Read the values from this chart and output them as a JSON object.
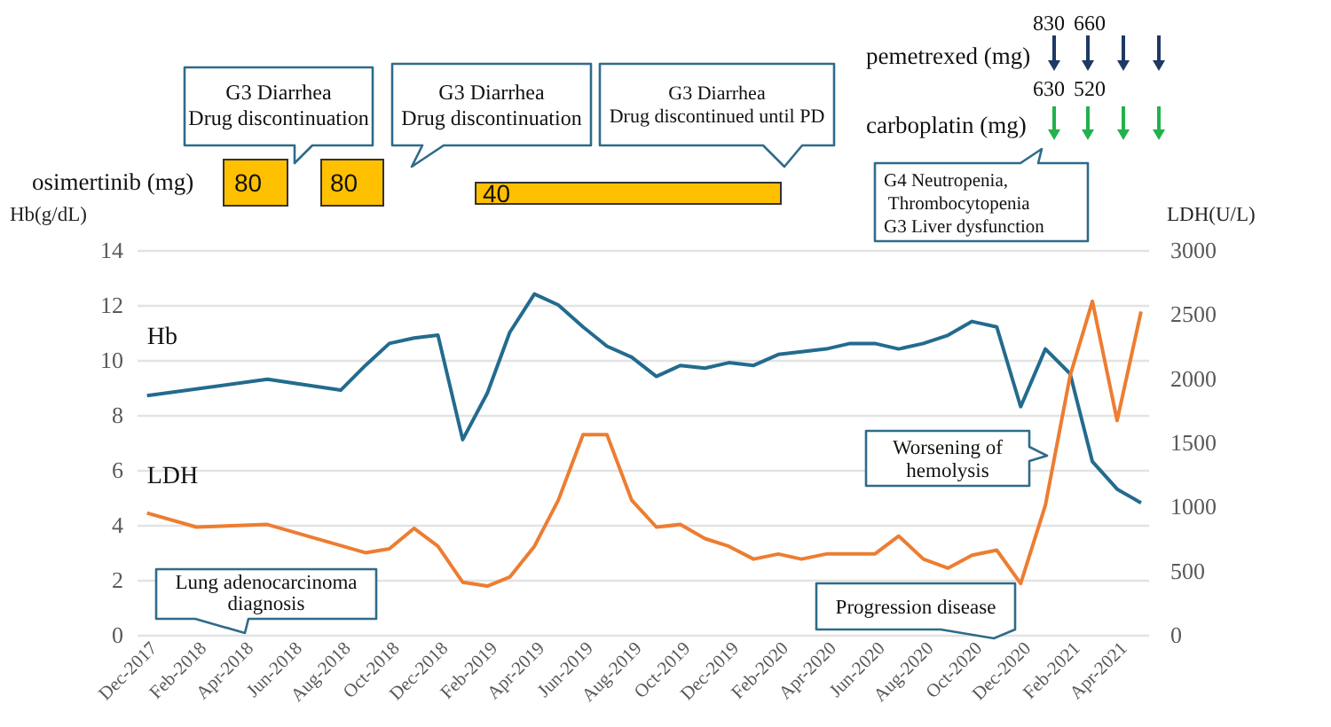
{
  "chart_data": {
    "type": "line",
    "xlim": [
      "2017-11-18",
      "2021-05-10"
    ],
    "xticks": [
      {
        "value": "2017-12",
        "label": "Dec-2017"
      },
      {
        "value": "2018-02",
        "label": "Feb-2018"
      },
      {
        "value": "2018-04",
        "label": "Apr-2018"
      },
      {
        "value": "2018-06",
        "label": "Jun-2018"
      },
      {
        "value": "2018-08",
        "label": "Aug-2018"
      },
      {
        "value": "2018-10",
        "label": "Oct-2018"
      },
      {
        "value": "2018-12",
        "label": "Dec-2018"
      },
      {
        "value": "2019-02",
        "label": "Feb-2019"
      },
      {
        "value": "2019-04",
        "label": "Apr-2019"
      },
      {
        "value": "2019-06",
        "label": "Jun-2019"
      },
      {
        "value": "2019-08",
        "label": "Aug-2019"
      },
      {
        "value": "2019-10",
        "label": "Oct-2019"
      },
      {
        "value": "2019-12",
        "label": "Dec-2019"
      },
      {
        "value": "2020-02",
        "label": "Feb-2020"
      },
      {
        "value": "2020-04",
        "label": "Apr-2020"
      },
      {
        "value": "2020-06",
        "label": "Jun-2020"
      },
      {
        "value": "2020-08",
        "label": "Aug-2020"
      },
      {
        "value": "2020-10",
        "label": "Oct-2020"
      },
      {
        "value": "2020-12",
        "label": "Dec-2020"
      },
      {
        "value": "2021-02",
        "label": "Feb-2021"
      },
      {
        "value": "2021-04",
        "label": "Apr-2021"
      }
    ],
    "ylabel": "Hb(g/dL)",
    "ylim": [
      0,
      14
    ],
    "yticks": [
      0,
      2,
      4,
      6,
      8,
      10,
      12,
      14
    ],
    "y2label": "LDH(U/L)",
    "y2lim": [
      0,
      3000
    ],
    "y2ticks": [
      0,
      500,
      1000,
      1500,
      2000,
      2500,
      3000
    ],
    "grid": "y",
    "series": [
      {
        "name": "Hb",
        "color": "#236b8e",
        "x": [
          "2017-12",
          "2018-05",
          "2018-08",
          "2018-09",
          "2018-10",
          "2018-11",
          "2018-12",
          "2019-01",
          "2019-02",
          "2019-03",
          "2019-04",
          "2019-05",
          "2019-06",
          "2019-07",
          "2019-08",
          "2019-09",
          "2019-10",
          "2019-11",
          "2019-12",
          "2020-01",
          "2020-02",
          "2020-03",
          "2020-04",
          "2020-05",
          "2020-06",
          "2020-07",
          "2020-08",
          "2020-09",
          "2020-10",
          "2020-11",
          "2020-12",
          "2021-01",
          "2021-02",
          "2021-03",
          "2021-04",
          "2021-05"
        ],
        "values": [
          8.7,
          9.3,
          8.9,
          9.8,
          10.6,
          10.8,
          10.9,
          7.1,
          8.8,
          11.0,
          12.4,
          12.0,
          11.2,
          10.5,
          10.1,
          9.4,
          9.8,
          9.7,
          9.9,
          9.8,
          10.2,
          10.3,
          10.4,
          10.6,
          10.6,
          10.4,
          10.6,
          10.9,
          11.4,
          11.2,
          8.3,
          10.4,
          9.5,
          6.3,
          5.3,
          4.8
        ]
      },
      {
        "name": "LDH",
        "color": "#ed7d31",
        "axis": "y2",
        "x": [
          "2017-12",
          "2018-02",
          "2018-05",
          "2018-09",
          "2018-10",
          "2018-11",
          "2018-12",
          "2019-01",
          "2019-02",
          "2019-03",
          "2019-04",
          "2019-05",
          "2019-06",
          "2019-07",
          "2019-08",
          "2019-09",
          "2019-10",
          "2019-11",
          "2019-12",
          "2020-01",
          "2020-02",
          "2020-03",
          "2020-04",
          "2020-05",
          "2020-06",
          "2020-07",
          "2020-08",
          "2020-09",
          "2020-10",
          "2020-11",
          "2020-12",
          "2021-01",
          "2021-02",
          "2021-03",
          "2021-04",
          "2021-05"
        ],
        "values": [
          950,
          840,
          860,
          640,
          670,
          830,
          690,
          410,
          380,
          450,
          690,
          1050,
          1560,
          1560,
          1050,
          840,
          860,
          750,
          690,
          590,
          630,
          590,
          630,
          630,
          630,
          770,
          590,
          520,
          620,
          660,
          400,
          1010,
          2020,
          2600,
          1670,
          2520
        ]
      }
    ],
    "annotations": [
      "G3 Diarrhea\nDrug discontinuation",
      "G3 Diarrhea\nDrug discontinuation",
      "G3 Diarrhea\nDrug discontinued until PD",
      "osimertinib (mg)",
      "80",
      "80",
      "40",
      "pemetrexed (mg)",
      "830",
      "660",
      "carboplatin (mg)",
      "630",
      "520",
      "G4 Neutropenia,\n      Thrombocytopenia\nG3 Liver dysfunction",
      "Lung adenocarcinoma\ndiagnosis",
      "Progression disease",
      "Worsening of\nhemolysis"
    ]
  }
}
